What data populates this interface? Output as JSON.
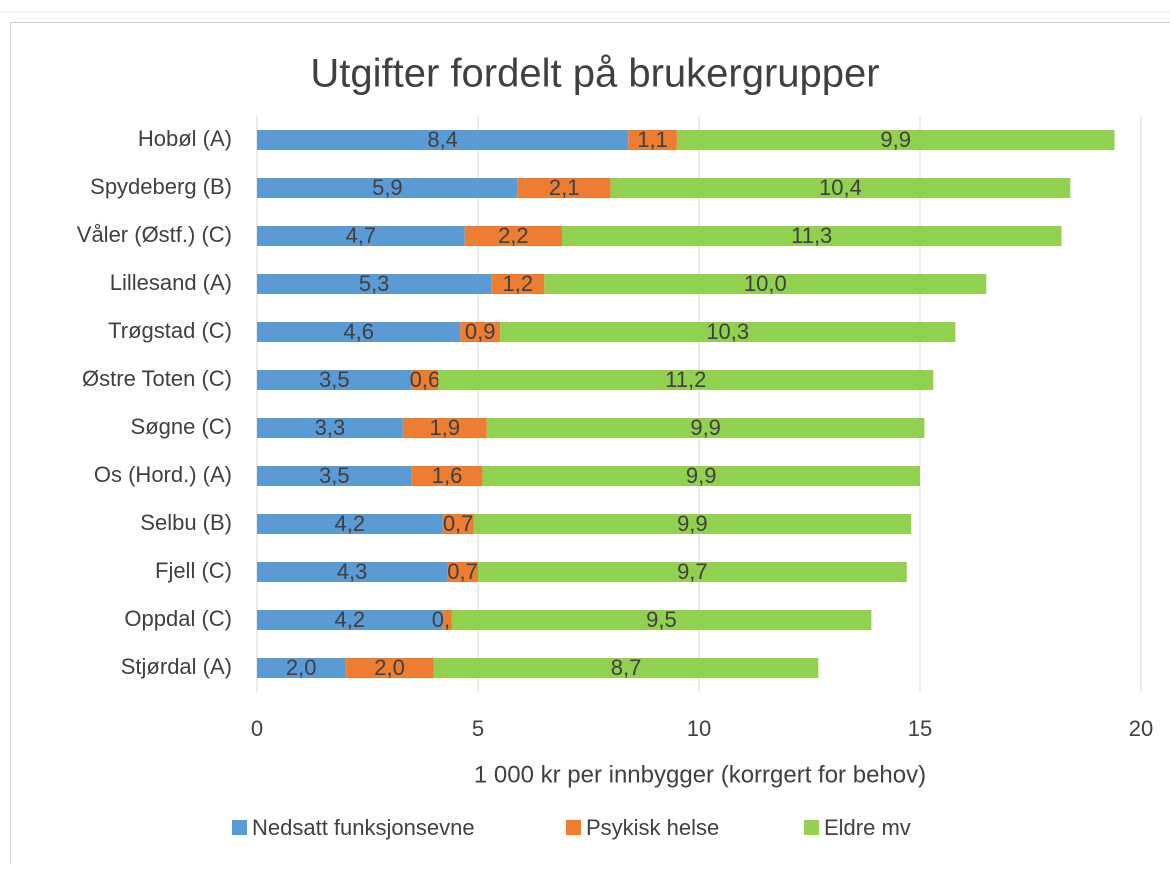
{
  "chart_data": {
    "type": "bar",
    "orientation": "horizontal",
    "stacked": true,
    "title": "Utgifter fordelt på brukergrupper",
    "x_label": "1 000 kr per innbygger (korrgert for behov)",
    "categories": [
      "Hobøl (A)",
      "Spydeberg (B)",
      "Våler (Østf.) (C)",
      "Lillesand (A)",
      "Trøgstad (C)",
      "Østre Toten (C)",
      "Søgne (C)",
      "Os (Hord.) (A)",
      "Selbu (B)",
      "Fjell (C)",
      "Oppdal (C)",
      "Stjørdal (A)"
    ],
    "series": [
      {
        "name": "Nedsatt funksjonsevne",
        "color": "#5b9bd5",
        "values": [
          8.4,
          5.9,
          4.7,
          5.3,
          4.6,
          3.5,
          3.3,
          3.5,
          4.2,
          4.3,
          4.2,
          2.0
        ],
        "value_labels": [
          "8,4",
          "5,9",
          "4,7",
          "5,3",
          "4,6",
          "3,5",
          "3,3",
          "3,5",
          "4,2",
          "4,3",
          "4,2",
          "2,0"
        ]
      },
      {
        "name": "Psykisk helse",
        "color": "#ed7d31",
        "values": [
          1.1,
          2.1,
          2.2,
          1.2,
          0.9,
          0.6,
          1.9,
          1.6,
          0.7,
          0.7,
          0.2,
          2.0
        ],
        "value_labels": [
          "1,1",
          "2,1",
          "2,2",
          "1,2",
          "0,9",
          "0,6",
          "1,9",
          "1,6",
          "0,7",
          "0,7",
          "0,2",
          "2,0"
        ]
      },
      {
        "name": "Eldre mv",
        "color": "#92d050",
        "values": [
          9.9,
          10.4,
          11.3,
          10.0,
          10.3,
          11.2,
          9.9,
          9.9,
          9.9,
          9.7,
          9.5,
          8.7
        ],
        "value_labels": [
          "9,9",
          "10,4",
          "11,3",
          "10,0",
          "10,3",
          "11,2",
          "9,9",
          "9,9",
          "9,9",
          "9,7",
          "9,5",
          "8,7"
        ]
      }
    ],
    "xlim": [
      0,
      20
    ],
    "xticks": [
      0,
      5,
      10,
      15,
      20
    ],
    "grid": true,
    "legend": "bottom"
  }
}
